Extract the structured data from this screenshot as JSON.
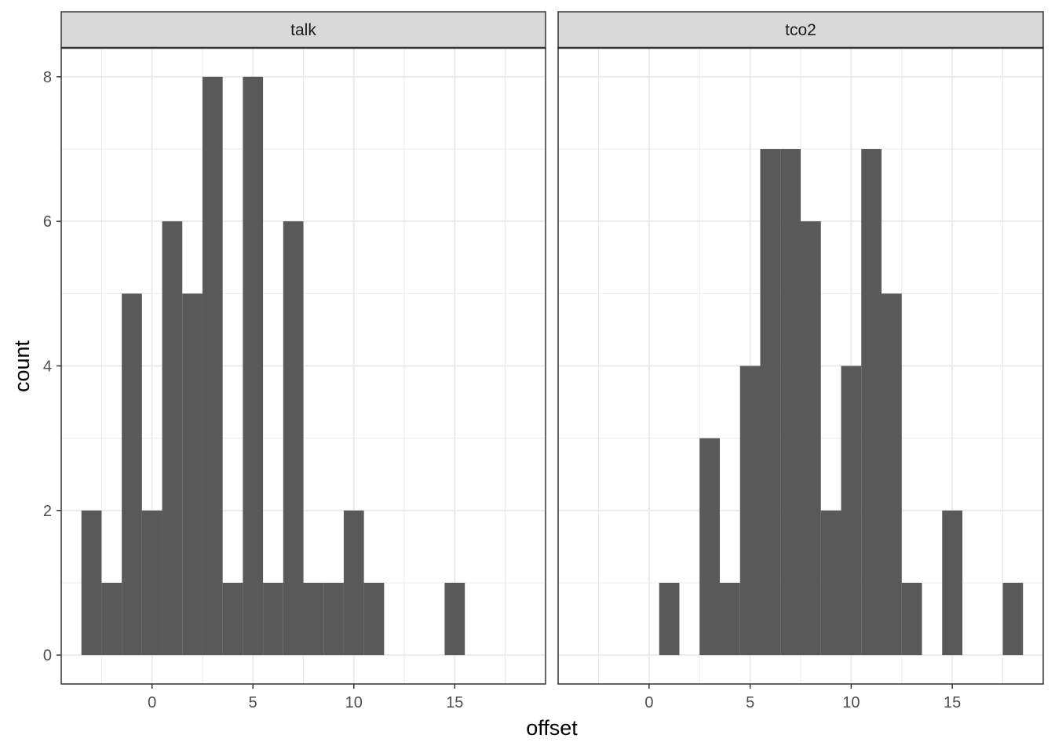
{
  "chart_data": {
    "type": "histogram-faceted",
    "xlabel": "offset",
    "ylabel": "count",
    "bar_color": "#595959",
    "strip_fill": "#d9d9d9",
    "grid_color": "#ebebeb",
    "grid": true,
    "xlim": [
      -4.5,
      19.5
    ],
    "ylim": [
      -0.4,
      8.4
    ],
    "x_ticks": [
      0,
      5,
      10,
      15
    ],
    "y_ticks": [
      0,
      2,
      4,
      6,
      8
    ],
    "bin_width": 1,
    "facets": [
      {
        "name": "talk",
        "bins": [
          {
            "x": -3,
            "count": 2
          },
          {
            "x": -2,
            "count": 1
          },
          {
            "x": -1,
            "count": 5
          },
          {
            "x": 0,
            "count": 2
          },
          {
            "x": 1,
            "count": 6
          },
          {
            "x": 2,
            "count": 5
          },
          {
            "x": 3,
            "count": 8
          },
          {
            "x": 4,
            "count": 1
          },
          {
            "x": 5,
            "count": 8
          },
          {
            "x": 6,
            "count": 1
          },
          {
            "x": 7,
            "count": 6
          },
          {
            "x": 8,
            "count": 1
          },
          {
            "x": 9,
            "count": 1
          },
          {
            "x": 10,
            "count": 2
          },
          {
            "x": 11,
            "count": 1
          },
          {
            "x": 15,
            "count": 1
          }
        ]
      },
      {
        "name": "tco2",
        "bins": [
          {
            "x": 1,
            "count": 1
          },
          {
            "x": 3,
            "count": 3
          },
          {
            "x": 4,
            "count": 1
          },
          {
            "x": 5,
            "count": 4
          },
          {
            "x": 6,
            "count": 7
          },
          {
            "x": 7,
            "count": 7
          },
          {
            "x": 8,
            "count": 6
          },
          {
            "x": 9,
            "count": 2
          },
          {
            "x": 10,
            "count": 4
          },
          {
            "x": 11,
            "count": 7
          },
          {
            "x": 12,
            "count": 5
          },
          {
            "x": 13,
            "count": 1
          },
          {
            "x": 15,
            "count": 2
          },
          {
            "x": 18,
            "count": 1
          }
        ]
      }
    ]
  }
}
